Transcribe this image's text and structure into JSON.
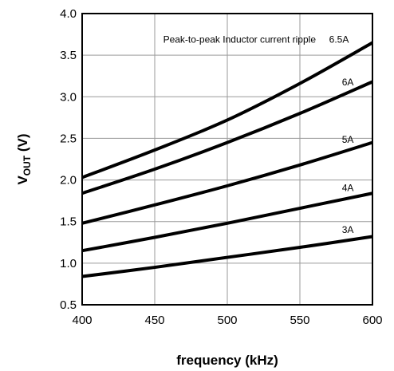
{
  "chart_data": {
    "type": "line",
    "title": "",
    "xlabel": "frequency (kHz)",
    "ylabel_main": "V",
    "ylabel_sub": "OUT",
    "ylabel_unit": " (V)",
    "xlim": [
      400,
      600
    ],
    "ylim": [
      0.5,
      4.0
    ],
    "xticks": [
      "400",
      "450",
      "500",
      "550",
      "600"
    ],
    "yticks": [
      "0.5",
      "1.0",
      "1.5",
      "2.0",
      "2.5",
      "3.0",
      "3.5",
      "4.0"
    ],
    "grid": true,
    "annotation": "Peak-to-peak Inductor current ripple",
    "series": [
      {
        "name": "6.5A",
        "x": [
          400,
          450,
          500,
          550,
          600
        ],
        "values": [
          2.03,
          2.36,
          2.72,
          3.16,
          3.65
        ]
      },
      {
        "name": "6A",
        "x": [
          400,
          450,
          500,
          550,
          600
        ],
        "values": [
          1.84,
          2.13,
          2.45,
          2.8,
          3.18
        ]
      },
      {
        "name": "5A",
        "x": [
          400,
          450,
          500,
          550,
          600
        ],
        "values": [
          1.48,
          1.7,
          1.93,
          2.18,
          2.45
        ]
      },
      {
        "name": "4A",
        "x": [
          400,
          450,
          500,
          550,
          600
        ],
        "values": [
          1.15,
          1.31,
          1.48,
          1.66,
          1.84
        ]
      },
      {
        "name": "3A",
        "x": [
          400,
          450,
          500,
          550,
          600
        ],
        "values": [
          0.84,
          0.95,
          1.07,
          1.19,
          1.32
        ]
      }
    ]
  }
}
